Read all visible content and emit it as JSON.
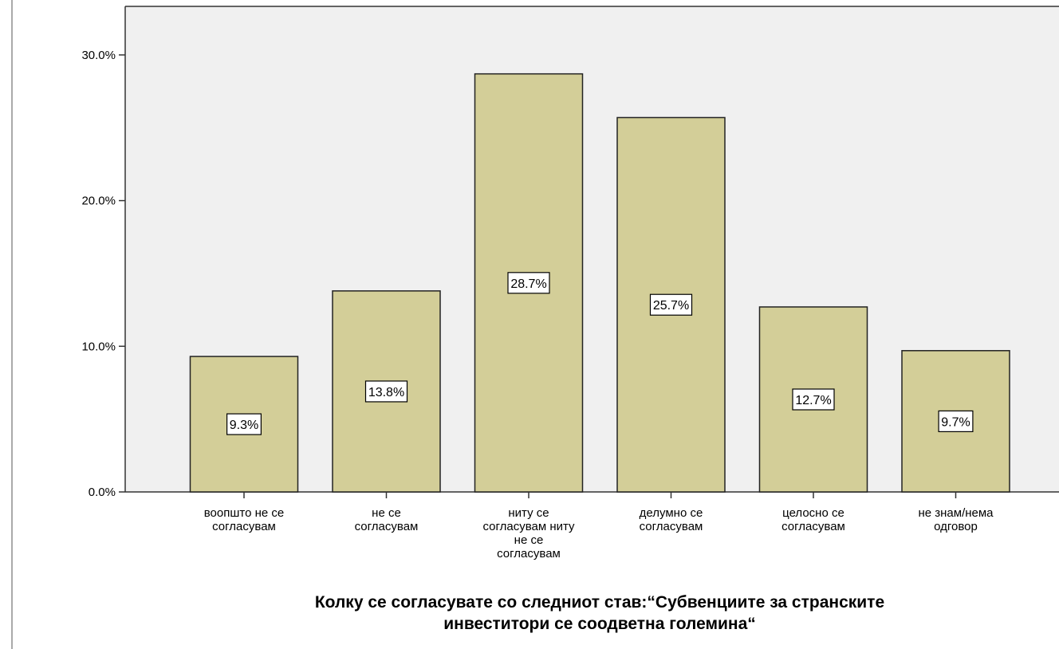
{
  "chart_data": {
    "type": "bar",
    "categories": [
      [
        "воопшто не се",
        "согласувам"
      ],
      [
        "не се",
        "согласувам"
      ],
      [
        "ниту се",
        "согласувам ниту",
        "не се",
        "согласувам"
      ],
      [
        "делумно се",
        "согласувам"
      ],
      [
        "целосно се",
        "согласувам"
      ],
      [
        "не знам/нема",
        "одговор"
      ]
    ],
    "values": [
      9.3,
      13.8,
      28.7,
      25.7,
      12.7,
      9.7
    ],
    "value_labels": [
      "9.3%",
      "13.8%",
      "28.7%",
      "25.7%",
      "12.7%",
      "9.7%"
    ],
    "ylim": [
      0,
      33.0
    ],
    "yticks": [
      0,
      10,
      20,
      30
    ],
    "ytick_labels": [
      "0.0%",
      "10.0%",
      "20.0%",
      "30.0%"
    ],
    "xlabel": [
      "Колку се согласувате со следниот став:“Субвенциите за странските",
      "инвеститори се соодветна големина“"
    ],
    "ylabel": "",
    "grid": false,
    "colors": {
      "bar_fill": "#d3ce98",
      "bar_stroke": "#222222",
      "plot_background": "#f0f0f0",
      "label_box": "#ffffff"
    }
  }
}
